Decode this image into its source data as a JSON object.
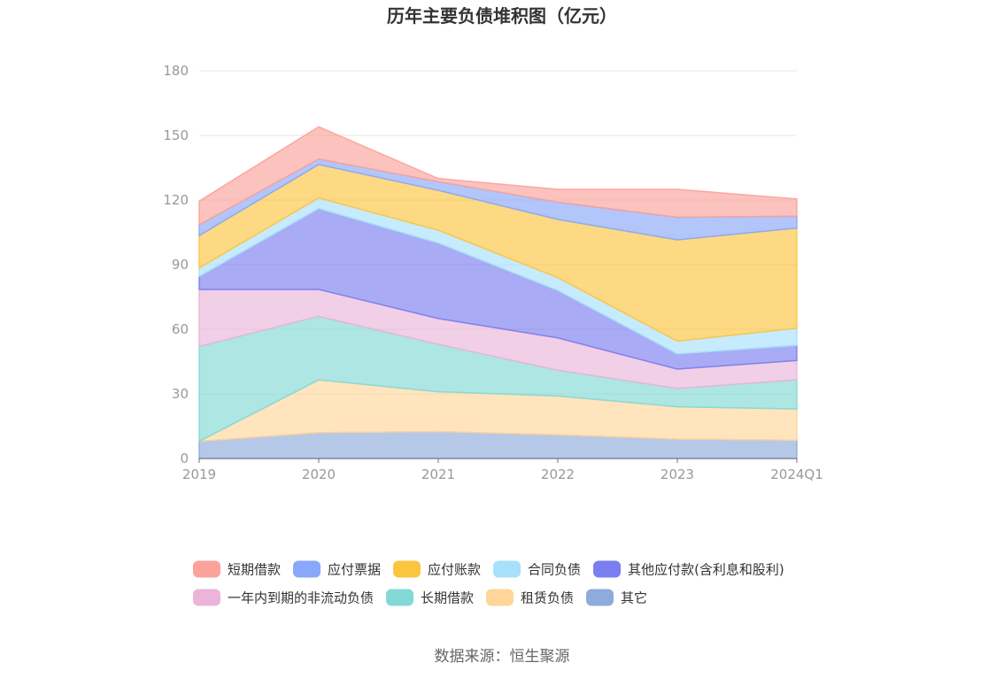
{
  "chart_data": {
    "type": "area",
    "stacked": true,
    "title": "历年主要负债堆积图（亿元）",
    "x": [
      "2019",
      "2020",
      "2021",
      "2022",
      "2023",
      "2024Q1"
    ],
    "ylim": [
      0,
      180
    ],
    "yticks": [
      0,
      30,
      60,
      90,
      120,
      150,
      180
    ],
    "grid": true,
    "legend_position": "bottom",
    "series": [
      {
        "name": "其它",
        "color": "#8faadc",
        "values": [
          8,
          12,
          12.5,
          11,
          9,
          8.5
        ]
      },
      {
        "name": "租赁负债",
        "color": "#ffd59a",
        "values": [
          0,
          24.5,
          18.5,
          18,
          15,
          14.5
        ]
      },
      {
        "name": "长期借款",
        "color": "#83d9d6",
        "values": [
          44,
          29.5,
          22,
          12,
          8.5,
          13.5
        ]
      },
      {
        "name": "一年内到期的非流动负债",
        "color": "#eab5d8",
        "values": [
          26.5,
          12.5,
          12,
          15,
          9,
          9
        ]
      },
      {
        "name": "其他应付款(含利息和股利)",
        "color": "#7b7ef0",
        "values": [
          6,
          37.5,
          35,
          22,
          7,
          7
        ]
      },
      {
        "name": "合同负债",
        "color": "#a8e0fa",
        "values": [
          4,
          5,
          6,
          6,
          6,
          8
        ]
      },
      {
        "name": "应付账款",
        "color": "#fcc540",
        "values": [
          15,
          15.5,
          18.5,
          27,
          47,
          46.5
        ]
      },
      {
        "name": "应付票据",
        "color": "#89a7fb",
        "values": [
          5,
          2.5,
          4,
          8,
          10.5,
          5.5
        ]
      },
      {
        "name": "短期借款",
        "color": "#fba29a",
        "values": [
          11,
          15,
          1.5,
          6,
          13,
          8
        ]
      }
    ],
    "legend_order": [
      "短期借款",
      "应付票据",
      "应付账款",
      "合同负债",
      "其他应付款(含利息和股利)",
      "一年内到期的非流动负债",
      "长期借款",
      "租赁负债",
      "其它"
    ]
  },
  "source_text": "数据来源：恒生聚源"
}
